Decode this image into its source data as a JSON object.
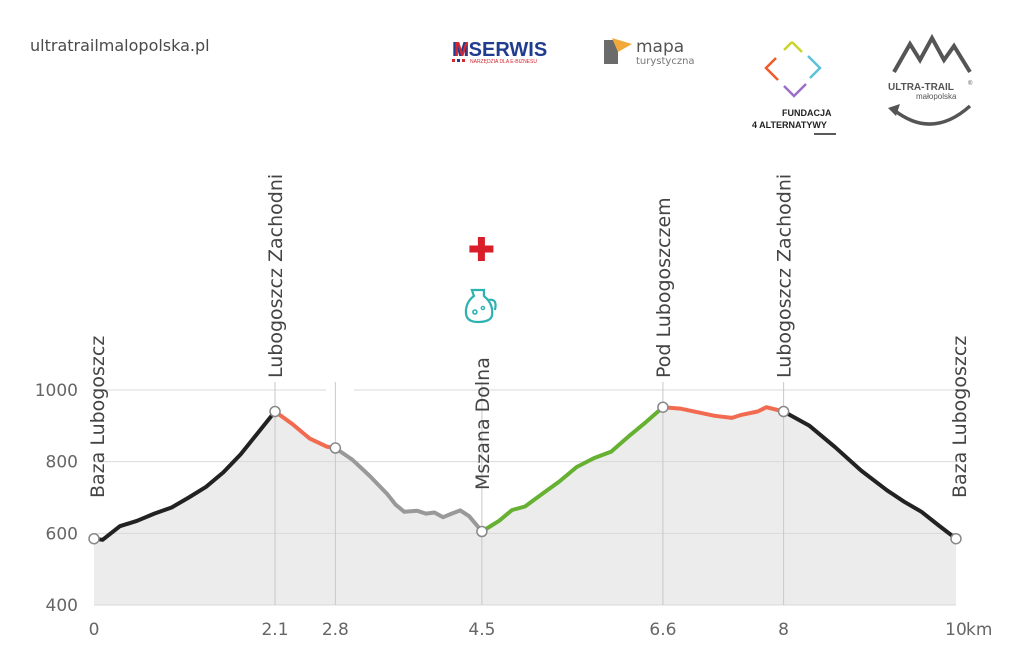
{
  "site_url": "ultratrailmalopolska.pl",
  "logos": {
    "mserwis": {
      "name": "MSERWIS",
      "tagline": "NARZĘDZIA DLA E-BIZNESU"
    },
    "mapa": {
      "line1": "mapa",
      "line2": "turystyczna"
    },
    "fundacja": {
      "line1": "FUNDACJA",
      "line2": "4 ALTERNATYWY"
    },
    "ultratrail": {
      "line1": "ULTRA-TRAIL",
      "mark": "®",
      "line2": "małopolska"
    }
  },
  "chart_data": {
    "type": "area",
    "title": "",
    "xlabel": "",
    "ylabel": "",
    "x_unit": "km",
    "xlim": [
      0,
      10
    ],
    "ylim": [
      400,
      1000
    ],
    "y_ticks": [
      400,
      600,
      800,
      1000
    ],
    "x_ticks": [
      {
        "value": 0,
        "label": "0"
      },
      {
        "value": 2.1,
        "label": "2.1"
      },
      {
        "value": 2.8,
        "label": "2.8"
      },
      {
        "value": 4.5,
        "label": "4.5"
      },
      {
        "value": 6.6,
        "label": "6.6"
      },
      {
        "value": 8,
        "label": "8"
      },
      {
        "value": 10,
        "label": "10"
      }
    ],
    "grid": true,
    "checkpoints": [
      {
        "km": 0,
        "elev": 585,
        "name": "Baza Lubogoszcz"
      },
      {
        "km": 2.1,
        "elev": 940,
        "name": "Lubogoszcz Zachodni"
      },
      {
        "km": 2.8,
        "elev": 838,
        "name": ""
      },
      {
        "km": 4.5,
        "elev": 605,
        "name": "Mszana Dolna",
        "icons": [
          "first-aid-icon",
          "water-jug-icon"
        ]
      },
      {
        "km": 6.6,
        "elev": 952,
        "name": "Pod Lubogoszczem"
      },
      {
        "km": 8,
        "elev": 940,
        "name": "Lubogoszcz Zachodni"
      },
      {
        "km": 10,
        "elev": 585,
        "name": "Baza Lubogoszcz"
      }
    ],
    "series": [
      {
        "color": "#222222",
        "points": [
          [
            0,
            585
          ],
          [
            0.1,
            582
          ],
          [
            0.3,
            620
          ],
          [
            0.5,
            635
          ],
          [
            0.7,
            655
          ],
          [
            0.9,
            672
          ],
          [
            1.1,
            700
          ],
          [
            1.3,
            730
          ],
          [
            1.5,
            770
          ],
          [
            1.7,
            820
          ],
          [
            1.9,
            880
          ],
          [
            2.1,
            940
          ]
        ]
      },
      {
        "color": "#f26b50",
        "points": [
          [
            2.1,
            940
          ],
          [
            2.3,
            905
          ],
          [
            2.5,
            865
          ],
          [
            2.7,
            842
          ],
          [
            2.8,
            838
          ]
        ]
      },
      {
        "color": "#999999",
        "points": [
          [
            2.8,
            838
          ],
          [
            3.0,
            805
          ],
          [
            3.2,
            760
          ],
          [
            3.4,
            710
          ],
          [
            3.5,
            680
          ],
          [
            3.6,
            660
          ],
          [
            3.75,
            663
          ],
          [
            3.85,
            655
          ],
          [
            3.95,
            658
          ],
          [
            4.05,
            645
          ],
          [
            4.15,
            655
          ],
          [
            4.25,
            664
          ],
          [
            4.35,
            648
          ],
          [
            4.45,
            620
          ],
          [
            4.5,
            605
          ]
        ]
      },
      {
        "color": "#66b032",
        "points": [
          [
            4.5,
            605
          ],
          [
            4.7,
            635
          ],
          [
            4.85,
            665
          ],
          [
            5.0,
            675
          ],
          [
            5.2,
            710
          ],
          [
            5.4,
            745
          ],
          [
            5.6,
            785
          ],
          [
            5.8,
            810
          ],
          [
            6.0,
            828
          ],
          [
            6.2,
            870
          ],
          [
            6.4,
            910
          ],
          [
            6.6,
            952
          ]
        ]
      },
      {
        "color": "#f26b50",
        "points": [
          [
            6.6,
            952
          ],
          [
            6.8,
            948
          ],
          [
            7.0,
            938
          ],
          [
            7.2,
            928
          ],
          [
            7.4,
            922
          ],
          [
            7.5,
            930
          ],
          [
            7.7,
            940
          ],
          [
            7.8,
            952
          ],
          [
            8.0,
            940
          ]
        ]
      },
      {
        "color": "#222222",
        "points": [
          [
            8.0,
            940
          ],
          [
            8.3,
            900
          ],
          [
            8.6,
            840
          ],
          [
            8.9,
            775
          ],
          [
            9.2,
            720
          ],
          [
            9.4,
            688
          ],
          [
            9.6,
            660
          ],
          [
            9.8,
            622
          ],
          [
            10,
            585
          ]
        ]
      }
    ]
  }
}
